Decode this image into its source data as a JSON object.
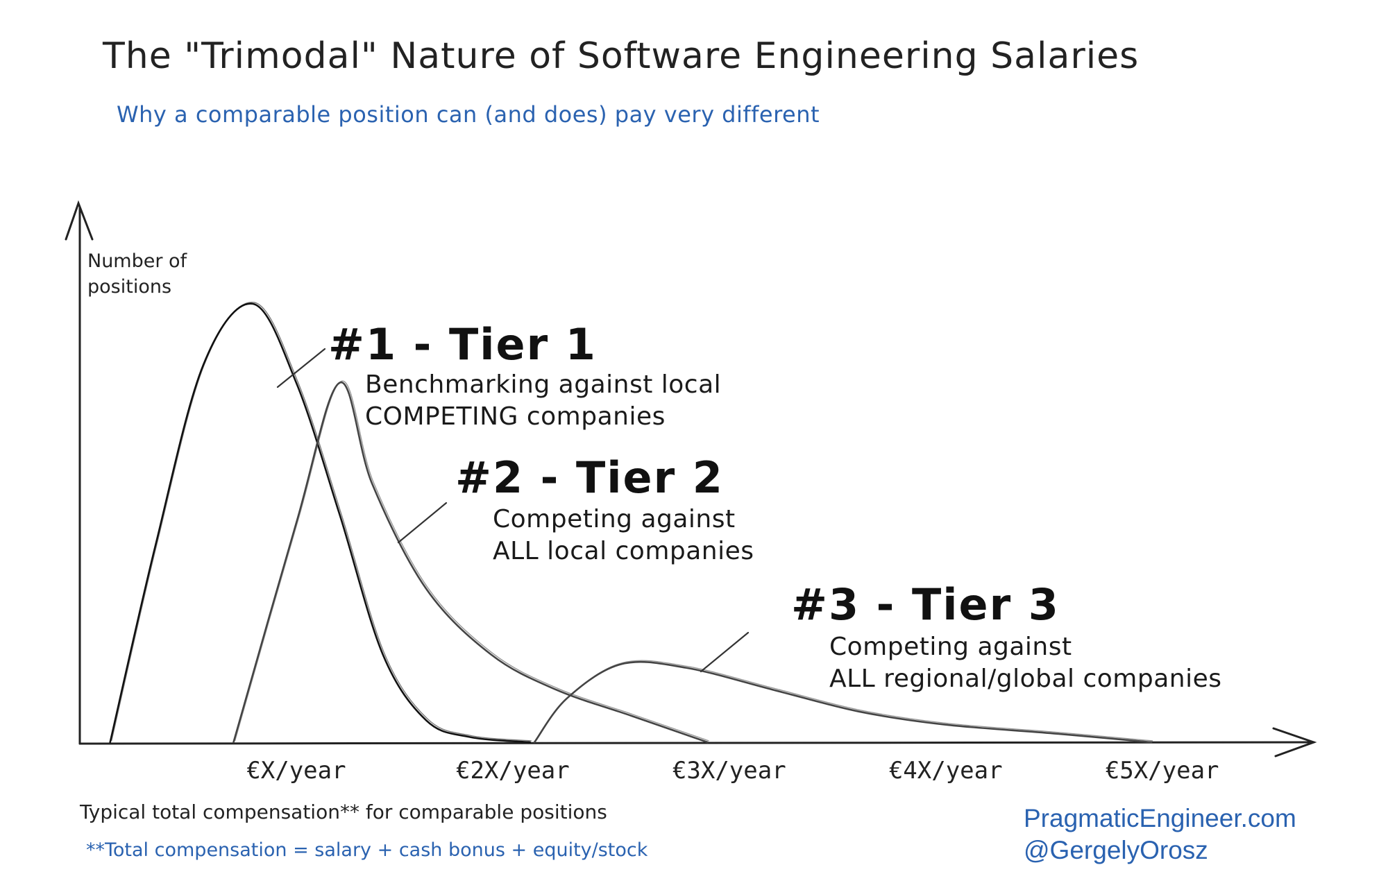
{
  "chart_data": {
    "type": "area",
    "title": "The \"Trimodal\" Nature of Software Engineering Salaries",
    "subtitle": "Why a comparable position can (and does) pay very different",
    "ylabel_lines": [
      "Number of",
      "positions"
    ],
    "xlabel": "Typical total compensation** for comparable positions",
    "footnote": "**Total compensation = salary + cash bonus + equity/stock",
    "x_ticks": [
      {
        "label": "€X/year",
        "value": 1
      },
      {
        "label": "€2X/year",
        "value": 2
      },
      {
        "label": "€3X/year",
        "value": 3
      },
      {
        "label": "€4X/year",
        "value": 4
      },
      {
        "label": "€5X/year",
        "value": 5
      }
    ],
    "xlim": [
      0,
      5.7
    ],
    "ylim": [
      0,
      1.0
    ],
    "series": [
      {
        "name": "#1 - Tier 1",
        "description": [
          "Benchmarking against local",
          "COMPETING companies"
        ],
        "points": [
          [
            0.14,
            0.0
          ],
          [
            0.35,
            0.45
          ],
          [
            0.57,
            0.86
          ],
          [
            0.8,
            1.0
          ],
          [
            1.0,
            0.82
          ],
          [
            1.2,
            0.52
          ],
          [
            1.4,
            0.2
          ],
          [
            1.6,
            0.05
          ],
          [
            1.8,
            0.012
          ],
          [
            2.08,
            0.0
          ]
        ]
      },
      {
        "name": "#2 - Tier 2",
        "description": [
          "Competing against",
          "ALL local companies"
        ],
        "points": [
          [
            0.71,
            0.0
          ],
          [
            1.0,
            0.5
          ],
          [
            1.2,
            0.82
          ],
          [
            1.35,
            0.59
          ],
          [
            1.6,
            0.35
          ],
          [
            1.9,
            0.2
          ],
          [
            2.2,
            0.12
          ],
          [
            2.55,
            0.06
          ],
          [
            2.9,
            0.0
          ]
        ]
      },
      {
        "name": "#3 - Tier 3",
        "description": [
          "Competing against",
          "ALL regional/global companies"
        ],
        "points": [
          [
            2.1,
            0.0
          ],
          [
            2.25,
            0.1
          ],
          [
            2.5,
            0.178
          ],
          [
            2.8,
            0.17
          ],
          [
            3.2,
            0.12
          ],
          [
            3.6,
            0.07
          ],
          [
            4.0,
            0.04
          ],
          [
            4.5,
            0.02
          ],
          [
            4.95,
            0.0
          ]
        ]
      }
    ],
    "grid": false,
    "legend": "none"
  },
  "credit": {
    "site": "PragmaticEngineer.com",
    "handle": "@GergelyOrosz"
  },
  "colors": {
    "ink": "#1a1a1a",
    "accent_blue": "#2a62b0"
  }
}
